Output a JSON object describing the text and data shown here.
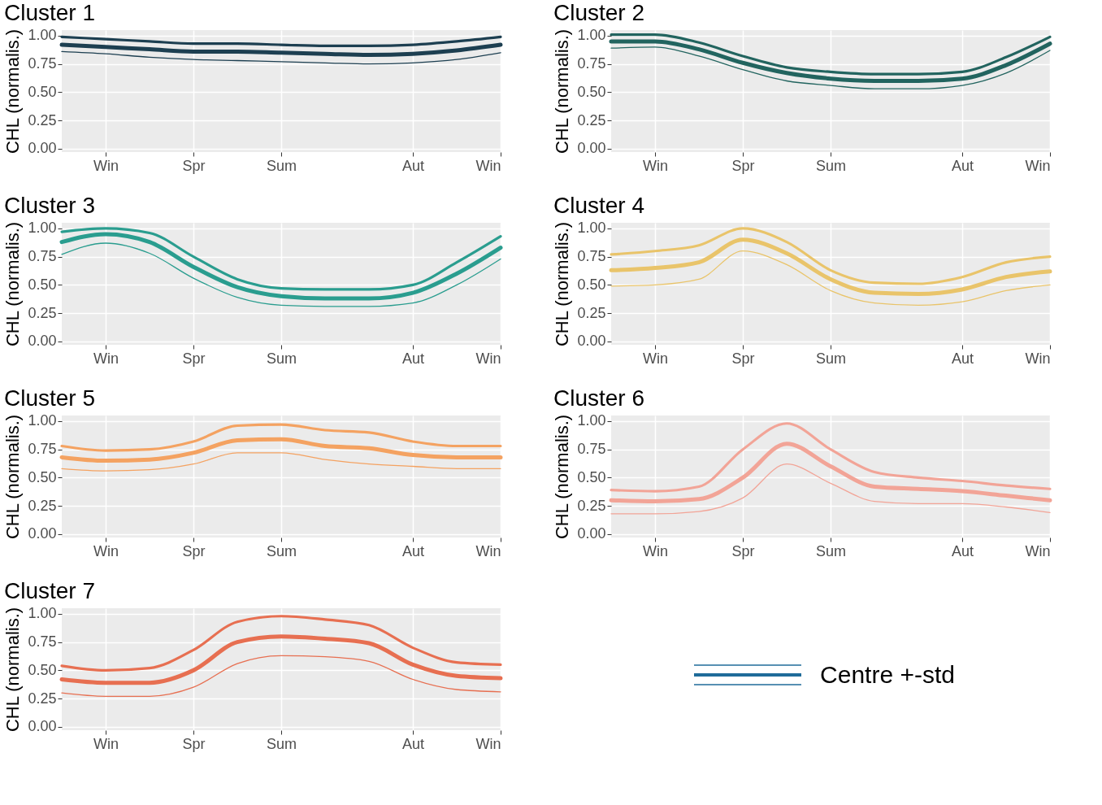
{
  "chart_data": [
    {
      "type": "line",
      "title": "Cluster 1",
      "ylabel": "CHL (normalis.)",
      "categories": [
        null,
        "Win",
        null,
        "Spr",
        null,
        "Sum",
        null,
        null,
        "Aut",
        null,
        "Win"
      ],
      "ylim": [
        -0.03,
        1.05
      ],
      "yticks": [
        {
          "value": 0,
          "label": "0.00"
        },
        {
          "value": 0.25,
          "label": "0.25"
        },
        {
          "value": 0.5,
          "label": "0.50"
        },
        {
          "value": 0.75,
          "label": "0.75"
        },
        {
          "value": 1,
          "label": "1.00"
        }
      ],
      "grid": true,
      "series": [
        {
          "color": "#1d3f51",
          "values": [
            0.92,
            0.9,
            0.88,
            0.86,
            0.86,
            0.85,
            0.84,
            0.83,
            0.84,
            0.87,
            0.92
          ]
        },
        {
          "color": "#1d3f51",
          "values": [
            0.99,
            0.97,
            0.95,
            0.93,
            0.93,
            0.92,
            0.91,
            0.91,
            0.92,
            0.95,
            0.99
          ]
        },
        {
          "color": "#1d3f51",
          "values": [
            0.86,
            0.84,
            0.81,
            0.79,
            0.78,
            0.77,
            0.76,
            0.75,
            0.76,
            0.79,
            0.85
          ]
        }
      ]
    },
    {
      "type": "line",
      "title": "Cluster 2",
      "ylabel": "CHL (normalis.)",
      "categories": [
        null,
        "Win",
        null,
        "Spr",
        null,
        "Sum",
        null,
        null,
        "Aut",
        null,
        "Win"
      ],
      "ylim": [
        -0.03,
        1.05
      ],
      "yticks": [
        {
          "value": 0,
          "label": "0.00"
        },
        {
          "value": 0.25,
          "label": "0.25"
        },
        {
          "value": 0.5,
          "label": "0.50"
        },
        {
          "value": 0.75,
          "label": "0.75"
        },
        {
          "value": 1,
          "label": "1.00"
        }
      ],
      "grid": true,
      "series": [
        {
          "color": "#22645f",
          "values": [
            0.95,
            0.95,
            0.88,
            0.76,
            0.67,
            0.62,
            0.6,
            0.6,
            0.62,
            0.74,
            0.93
          ]
        },
        {
          "color": "#22645f",
          "values": [
            1.01,
            1.01,
            0.94,
            0.82,
            0.72,
            0.68,
            0.66,
            0.66,
            0.68,
            0.81,
            0.99
          ]
        },
        {
          "color": "#22645f",
          "values": [
            0.89,
            0.9,
            0.82,
            0.7,
            0.6,
            0.56,
            0.53,
            0.53,
            0.56,
            0.67,
            0.87
          ]
        }
      ]
    },
    {
      "type": "line",
      "title": "Cluster 3",
      "ylabel": "CHL (normalis.)",
      "categories": [
        null,
        "Win",
        null,
        "Spr",
        null,
        "Sum",
        null,
        null,
        "Aut",
        null,
        "Win"
      ],
      "ylim": [
        -0.03,
        1.05
      ],
      "yticks": [
        {
          "value": 0,
          "label": "0.00"
        },
        {
          "value": 0.25,
          "label": "0.25"
        },
        {
          "value": 0.5,
          "label": "0.50"
        },
        {
          "value": 0.75,
          "label": "0.75"
        },
        {
          "value": 1,
          "label": "1.00"
        }
      ],
      "grid": true,
      "series": [
        {
          "color": "#2a9d8f",
          "values": [
            0.88,
            0.95,
            0.88,
            0.66,
            0.48,
            0.4,
            0.38,
            0.38,
            0.43,
            0.6,
            0.83
          ]
        },
        {
          "color": "#2a9d8f",
          "values": [
            0.97,
            1.0,
            0.96,
            0.75,
            0.55,
            0.47,
            0.46,
            0.46,
            0.5,
            0.7,
            0.93
          ]
        },
        {
          "color": "#2a9d8f",
          "values": [
            0.77,
            0.87,
            0.78,
            0.56,
            0.39,
            0.32,
            0.31,
            0.31,
            0.34,
            0.5,
            0.73
          ]
        }
      ]
    },
    {
      "type": "line",
      "title": "Cluster 4",
      "ylabel": "CHL (normalis.)",
      "categories": [
        null,
        "Win",
        null,
        "Spr",
        null,
        "Sum",
        null,
        null,
        "Aut",
        null,
        "Win"
      ],
      "ylim": [
        -0.03,
        1.05
      ],
      "yticks": [
        {
          "value": 0,
          "label": "0.00"
        },
        {
          "value": 0.25,
          "label": "0.25"
        },
        {
          "value": 0.5,
          "label": "0.50"
        },
        {
          "value": 0.75,
          "label": "0.75"
        },
        {
          "value": 1,
          "label": "1.00"
        }
      ],
      "grid": true,
      "series": [
        {
          "color": "#e9c46a",
          "values": [
            0.63,
            0.65,
            0.7,
            0.9,
            0.78,
            0.55,
            0.43,
            0.42,
            0.46,
            0.57,
            0.62
          ]
        },
        {
          "color": "#e9c46a",
          "values": [
            0.77,
            0.8,
            0.85,
            1.0,
            0.88,
            0.63,
            0.52,
            0.51,
            0.57,
            0.7,
            0.75
          ]
        },
        {
          "color": "#e9c46a",
          "values": [
            0.49,
            0.5,
            0.55,
            0.8,
            0.68,
            0.45,
            0.34,
            0.32,
            0.35,
            0.45,
            0.5
          ]
        }
      ]
    },
    {
      "type": "line",
      "title": "Cluster 5",
      "ylabel": "CHL (normalis.)",
      "categories": [
        null,
        "Win",
        null,
        "Spr",
        null,
        "Sum",
        null,
        null,
        "Aut",
        null,
        "Win"
      ],
      "ylim": [
        -0.03,
        1.05
      ],
      "yticks": [
        {
          "value": 0,
          "label": "0.00"
        },
        {
          "value": 0.25,
          "label": "0.25"
        },
        {
          "value": 0.5,
          "label": "0.50"
        },
        {
          "value": 0.75,
          "label": "0.75"
        },
        {
          "value": 1,
          "label": "1.00"
        }
      ],
      "grid": true,
      "series": [
        {
          "color": "#f4a261",
          "values": [
            0.68,
            0.65,
            0.66,
            0.72,
            0.83,
            0.84,
            0.78,
            0.76,
            0.7,
            0.68,
            0.68
          ]
        },
        {
          "color": "#f4a261",
          "values": [
            0.78,
            0.74,
            0.75,
            0.82,
            0.96,
            0.97,
            0.92,
            0.9,
            0.82,
            0.78,
            0.78
          ]
        },
        {
          "color": "#f4a261",
          "values": [
            0.58,
            0.56,
            0.57,
            0.62,
            0.72,
            0.72,
            0.66,
            0.62,
            0.6,
            0.58,
            0.58
          ]
        }
      ]
    },
    {
      "type": "line",
      "title": "Cluster 6",
      "ylabel": "CHL (normalis.)",
      "categories": [
        null,
        "Win",
        null,
        "Spr",
        null,
        "Sum",
        null,
        null,
        "Aut",
        null,
        "Win"
      ],
      "ylim": [
        -0.03,
        1.05
      ],
      "yticks": [
        {
          "value": 0,
          "label": "0.00"
        },
        {
          "value": 0.25,
          "label": "0.25"
        },
        {
          "value": 0.5,
          "label": "0.50"
        },
        {
          "value": 0.75,
          "label": "0.75"
        },
        {
          "value": 1,
          "label": "1.00"
        }
      ],
      "grid": true,
      "series": [
        {
          "color": "#f2a497",
          "values": [
            0.3,
            0.29,
            0.31,
            0.5,
            0.8,
            0.6,
            0.42,
            0.4,
            0.38,
            0.34,
            0.3
          ]
        },
        {
          "color": "#f2a497",
          "values": [
            0.39,
            0.38,
            0.42,
            0.75,
            0.98,
            0.75,
            0.55,
            0.5,
            0.47,
            0.43,
            0.4
          ]
        },
        {
          "color": "#f2a497",
          "values": [
            0.18,
            0.18,
            0.2,
            0.32,
            0.62,
            0.45,
            0.29,
            0.27,
            0.27,
            0.24,
            0.19
          ]
        }
      ]
    },
    {
      "type": "line",
      "title": "Cluster 7",
      "ylabel": "CHL (normalis.)",
      "categories": [
        null,
        "Win",
        null,
        "Spr",
        null,
        "Sum",
        null,
        null,
        "Aut",
        null,
        "Win"
      ],
      "ylim": [
        -0.03,
        1.05
      ],
      "yticks": [
        {
          "value": 0,
          "label": "0.00"
        },
        {
          "value": 0.25,
          "label": "0.25"
        },
        {
          "value": 0.5,
          "label": "0.50"
        },
        {
          "value": 0.75,
          "label": "0.75"
        },
        {
          "value": 1,
          "label": "1.00"
        }
      ],
      "grid": true,
      "series": [
        {
          "color": "#e76f51",
          "values": [
            0.42,
            0.39,
            0.39,
            0.5,
            0.75,
            0.8,
            0.78,
            0.74,
            0.55,
            0.45,
            0.43
          ]
        },
        {
          "color": "#e76f51",
          "values": [
            0.54,
            0.5,
            0.52,
            0.68,
            0.93,
            0.98,
            0.95,
            0.9,
            0.7,
            0.57,
            0.55
          ]
        },
        {
          "color": "#e76f51",
          "values": [
            0.3,
            0.27,
            0.27,
            0.35,
            0.56,
            0.63,
            0.62,
            0.58,
            0.42,
            0.33,
            0.31
          ]
        }
      ]
    },
    {
      "type": "other",
      "annotations": [
        "Centre +-std"
      ]
    }
  ]
}
